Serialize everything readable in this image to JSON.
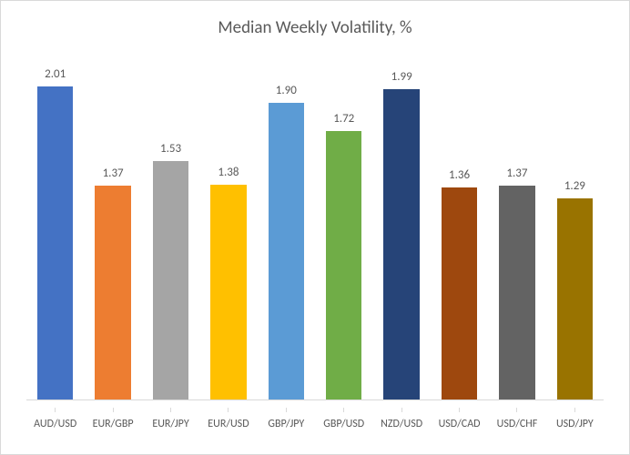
{
  "chart": {
    "type": "bar",
    "title": "Median Weekly Volatility, %",
    "title_fontsize": 19,
    "title_color": "#595959",
    "background_color": "#ffffff",
    "border_color": "#d9d9d9",
    "axis_line_color": "#d9d9d9",
    "label_color": "#595959",
    "label_fontsize": 12,
    "value_label_fontsize": 13,
    "value_label_color": "#595959",
    "ylim": [
      0,
      2.2
    ],
    "grid": false,
    "bar_width": 0.62,
    "categories": [
      "AUD/USD",
      "EUR/GBP",
      "EUR/JPY",
      "EUR/USD",
      "GBP/JPY",
      "GBP/USD",
      "NZD/USD",
      "USD/CAD",
      "USD/CHF",
      "USD/JPY"
    ],
    "values": [
      2.01,
      1.37,
      1.53,
      1.38,
      1.9,
      1.72,
      1.99,
      1.36,
      1.37,
      1.29
    ],
    "bar_colors": [
      "#4472c4",
      "#ed7d31",
      "#a5a5a5",
      "#ffc000",
      "#5b9bd5",
      "#70ad47",
      "#264478",
      "#9e480e",
      "#636363",
      "#997300"
    ]
  }
}
